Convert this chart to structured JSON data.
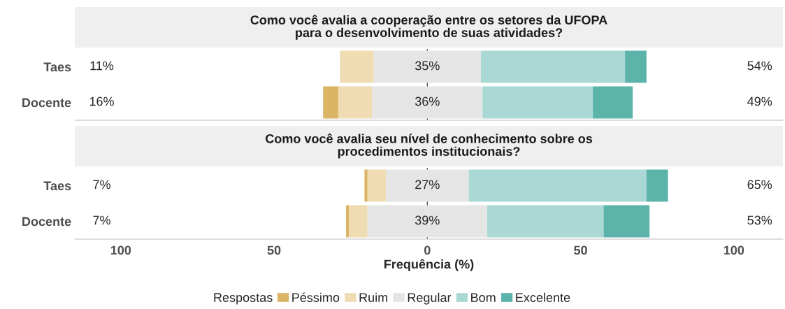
{
  "chart_data": [
    {
      "type": "bar",
      "orientation": "horizontal",
      "title": "Como você avalia a cooperação entre os setores da UFOPA\npara o desenvolvimento de suas atividades?",
      "categories": [
        "Taes",
        "Docente"
      ],
      "xlim": [
        -115,
        116
      ],
      "xticks": [
        {
          "value": -100,
          "label": null
        },
        {
          "value": -50,
          "label": null
        },
        {
          "value": 0,
          "label": null
        },
        {
          "value": 50,
          "label": null
        },
        {
          "value": 100,
          "label": null
        }
      ],
      "tick_labels": "y",
      "ref_lines": [
        {
          "axis": "x",
          "value": 0,
          "color": "#333333"
        }
      ],
      "annotations": [
        "11%",
        "16%",
        "54%",
        "49%"
      ],
      "series": [
        {
          "color": "#dbb466",
          "values": [
            0,
            5
          ],
          "base": [
            null,
            -34
          ]
        },
        {
          "color": "#efdcb2",
          "values": [
            11,
            11
          ],
          "base": [
            -28.5,
            -29
          ]
        },
        {
          "color": "#e5e5e5",
          "values": [
            35,
            36
          ],
          "base": [
            -17.5,
            -18
          ],
          "value_labels": [
            "35%",
            "36%"
          ]
        },
        {
          "color": "#aad9d5",
          "values": [
            47,
            36
          ],
          "base": [
            17.5,
            18
          ]
        },
        {
          "color": "#5bb3aa",
          "values": [
            7,
            13
          ],
          "base": [
            64.5,
            54
          ]
        }
      ]
    },
    {
      "type": "bar",
      "orientation": "horizontal",
      "title": "Como você avalia seu nível de conhecimento sobre os\nprocedimentos institucionais?",
      "categories": [
        "Taes",
        "Docente"
      ],
      "xlabel": "Frequência (%)",
      "xlim": [
        -115,
        116
      ],
      "xticks": [
        {
          "value": -100,
          "label": "100"
        },
        {
          "value": -50,
          "label": "50"
        },
        0,
        50,
        {
          "value": 100,
          "label": "100"
        }
      ],
      "ref_lines": [
        {
          "axis": "x",
          "value": 0,
          "color": "#333333"
        }
      ],
      "legend": "bottom",
      "legend_title": "Respostas",
      "annotations": [
        "7%",
        "7%",
        "65%",
        "53%"
      ],
      "series": [
        {
          "name": "Péssimo",
          "color": "#dbb466",
          "values": [
            1,
            1
          ],
          "base": [
            -20.5,
            -26.5
          ]
        },
        {
          "name": "Ruim",
          "color": "#efdcb2",
          "values": [
            6,
            6
          ],
          "base": [
            -19.5,
            -25.5
          ]
        },
        {
          "name": "Regular",
          "color": "#e5e5e5",
          "values": [
            27,
            39
          ],
          "base": [
            -13.5,
            -19.5
          ],
          "value_labels": [
            "27%",
            "39%"
          ]
        },
        {
          "name": "Bom",
          "color": "#aad9d5",
          "values": [
            58,
            38
          ],
          "base": [
            13.5,
            19.5
          ]
        },
        {
          "name": "Excelente",
          "color": "#5bb3aa",
          "values": [
            7,
            15
          ],
          "base": [
            71.5,
            57.5
          ]
        }
      ]
    }
  ]
}
